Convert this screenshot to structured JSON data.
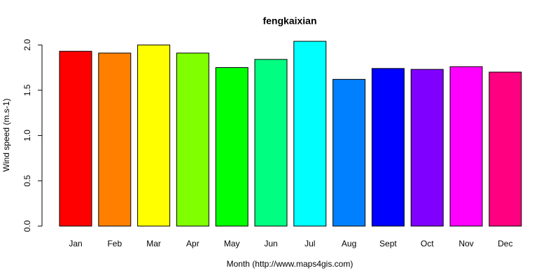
{
  "chart_data": {
    "type": "bar",
    "title": "fengkaixian",
    "x_label": "Month (http://www.maps4gis.com)",
    "y_label": "Wind speed (m.s-1)",
    "categories": [
      "Jan",
      "Feb",
      "Mar",
      "Apr",
      "May",
      "Jun",
      "Jul",
      "Aug",
      "Sept",
      "Oct",
      "Nov",
      "Dec"
    ],
    "values": [
      1.93,
      1.91,
      2.0,
      1.91,
      1.75,
      1.84,
      2.04,
      1.62,
      1.74,
      1.73,
      1.76,
      1.7
    ],
    "colors": [
      "#FF0000",
      "#FF8000",
      "#FFFF00",
      "#80FF00",
      "#00FF00",
      "#00FF80",
      "#00FFFF",
      "#0080FF",
      "#0000FF",
      "#8000FF",
      "#FF00FF",
      "#FF0080"
    ],
    "ylim": [
      0,
      2.04
    ],
    "yticks": [
      {
        "value": 0,
        "label": "0.0"
      },
      {
        "value": 0.5,
        "label": "0.5"
      },
      {
        "value": 1,
        "label": "1.0"
      },
      {
        "value": 1.5,
        "label": "1.5"
      },
      {
        "value": 2,
        "label": "2.0"
      }
    ]
  }
}
